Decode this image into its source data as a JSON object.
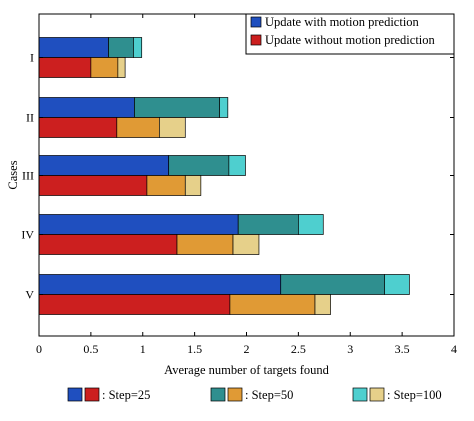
{
  "chart_data": {
    "type": "bar",
    "orientation": "horizontal",
    "stacked": true,
    "title": "",
    "xlabel": "Average number of targets found",
    "ylabel": "Cases",
    "xlim": [
      0,
      4
    ],
    "xticks": [
      "0",
      "0.5",
      "1",
      "1.5",
      "2",
      "2.5",
      "3",
      "3.5",
      "4"
    ],
    "categories": [
      "I",
      "II",
      "III",
      "IV",
      "V"
    ],
    "grid": false,
    "legend_placement": "top-right",
    "series": [
      {
        "name": "Update with motion prediction",
        "cumulative": {
          "step25": [
            0.67,
            0.92,
            1.25,
            1.92,
            2.33
          ],
          "step50": [
            0.91,
            1.74,
            1.83,
            2.5,
            3.33
          ],
          "step100": [
            0.99,
            1.82,
            1.99,
            2.74,
            3.57
          ]
        },
        "colors": {
          "step25": "#1f4fbf",
          "step50": "#2f8f8f",
          "step100": "#4ecfcf"
        }
      },
      {
        "name": "Update without motion prediction",
        "cumulative": {
          "step25": [
            0.5,
            0.75,
            1.04,
            1.33,
            1.84
          ],
          "step50": [
            0.76,
            1.16,
            1.41,
            1.87,
            2.66
          ],
          "step100": [
            0.83,
            1.41,
            1.56,
            2.12,
            2.81
          ]
        },
        "colors": {
          "step25": "#cc1f1f",
          "step50": "#e09a35",
          "step100": "#e6d08a"
        }
      }
    ],
    "step_legend": [
      {
        "label": ": Step=25",
        "colors": [
          "#1f4fbf",
          "#cc1f1f"
        ]
      },
      {
        "label": ": Step=50",
        "colors": [
          "#2f8f8f",
          "#e09a35"
        ]
      },
      {
        "label": ": Step=100",
        "colors": [
          "#4ecfcf",
          "#e6d08a"
        ]
      }
    ]
  }
}
